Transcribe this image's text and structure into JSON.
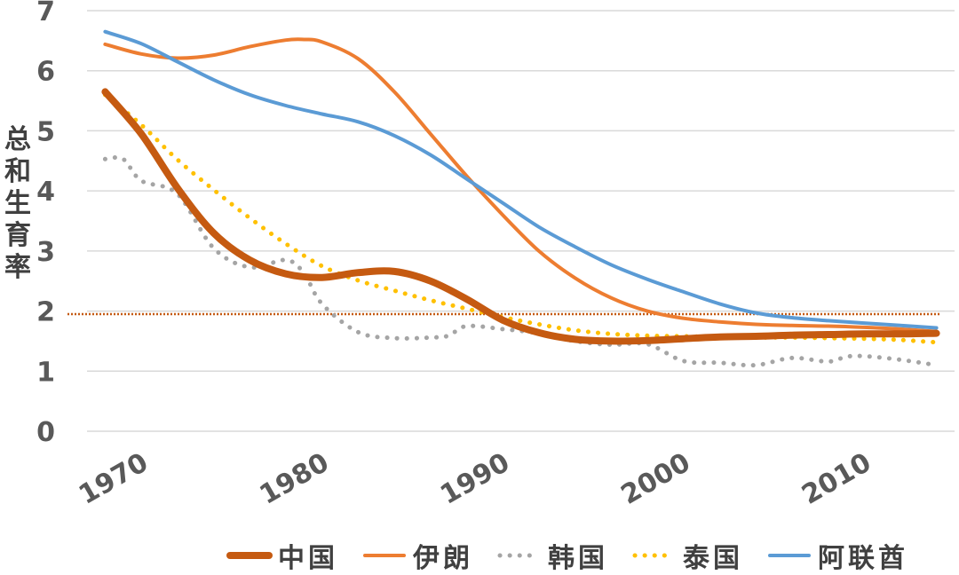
{
  "chart_data": {
    "type": "line",
    "title": "",
    "xlabel": "",
    "ylabel": "总和生育率",
    "ylim": [
      0,
      7
    ],
    "xlim": [
      1968,
      2016
    ],
    "x_ticks": [
      1970,
      1980,
      1990,
      2000,
      2010
    ],
    "y_ticks": [
      0,
      1,
      2,
      3,
      4,
      5,
      6,
      7
    ],
    "grid": "horizontal",
    "legend_position": "bottom",
    "reference_line": {
      "value": 1.95,
      "color": "#c55a11",
      "style": "dotted"
    },
    "series": [
      {
        "name": "中国",
        "color": "#c55a11",
        "style": "solid-thick",
        "x": [
          1969,
          1971,
          1973,
          1975,
          1977,
          1979,
          1981,
          1983,
          1985,
          1987,
          1989,
          1991,
          1993,
          1995,
          1997,
          1999,
          2001,
          2003,
          2005,
          2007,
          2009,
          2011,
          2013,
          2015
        ],
        "y": [
          5.65,
          4.95,
          4.05,
          3.3,
          2.85,
          2.62,
          2.56,
          2.64,
          2.66,
          2.5,
          2.2,
          1.85,
          1.64,
          1.53,
          1.5,
          1.51,
          1.54,
          1.57,
          1.58,
          1.6,
          1.61,
          1.62,
          1.62,
          1.63
        ]
      },
      {
        "name": "伊朗",
        "color": "#ed7d31",
        "style": "solid",
        "x": [
          1969,
          1971,
          1973,
          1975,
          1977,
          1979,
          1980,
          1981,
          1983,
          1985,
          1987,
          1989,
          1991,
          1993,
          1995,
          1997,
          1999,
          2001,
          2003,
          2005,
          2007,
          2009,
          2011,
          2013,
          2015
        ],
        "y": [
          6.44,
          6.28,
          6.21,
          6.26,
          6.4,
          6.51,
          6.52,
          6.48,
          6.2,
          5.65,
          4.95,
          4.25,
          3.6,
          3.0,
          2.55,
          2.22,
          2.0,
          1.88,
          1.82,
          1.78,
          1.76,
          1.75,
          1.73,
          1.7,
          1.66
        ]
      },
      {
        "name": "韩国",
        "color": "#a5a5a5",
        "style": "dotted",
        "x": [
          1969,
          1970,
          1971,
          1973,
          1975,
          1977,
          1979,
          1980,
          1981,
          1983,
          1985,
          1987,
          1988,
          1989,
          1991,
          1993,
          1995,
          1997,
          1999,
          2001,
          2003,
          2005,
          2007,
          2009,
          2010,
          2011,
          2013,
          2015
        ],
        "y": [
          4.53,
          4.53,
          4.17,
          3.95,
          3.05,
          2.73,
          2.85,
          2.63,
          2.12,
          1.65,
          1.55,
          1.56,
          1.59,
          1.75,
          1.7,
          1.63,
          1.5,
          1.44,
          1.45,
          1.17,
          1.14,
          1.1,
          1.22,
          1.16,
          1.24,
          1.25,
          1.19,
          1.1
        ]
      },
      {
        "name": "泰国",
        "color": "#ffc000",
        "style": "dotted",
        "x": [
          1969,
          1971,
          1973,
          1975,
          1977,
          1979,
          1981,
          1983,
          1985,
          1987,
          1989,
          1991,
          1993,
          1995,
          1997,
          1999,
          2001,
          2003,
          2005,
          2007,
          2009,
          2011,
          2013,
          2015
        ],
        "y": [
          5.6,
          5.1,
          4.52,
          4.02,
          3.55,
          3.12,
          2.75,
          2.51,
          2.34,
          2.18,
          2.04,
          1.9,
          1.78,
          1.68,
          1.62,
          1.59,
          1.58,
          1.57,
          1.56,
          1.56,
          1.55,
          1.54,
          1.52,
          1.48
        ]
      },
      {
        "name": "阿联酋",
        "color": "#5b9bd5",
        "style": "solid",
        "x": [
          1969,
          1971,
          1973,
          1975,
          1977,
          1979,
          1981,
          1983,
          1985,
          1987,
          1989,
          1991,
          1993,
          1995,
          1997,
          1999,
          2001,
          2003,
          2005,
          2007,
          2009,
          2011,
          2013,
          2015
        ],
        "y": [
          6.65,
          6.45,
          6.15,
          5.85,
          5.6,
          5.42,
          5.28,
          5.15,
          4.92,
          4.6,
          4.2,
          3.8,
          3.4,
          3.07,
          2.77,
          2.53,
          2.32,
          2.12,
          1.97,
          1.89,
          1.84,
          1.8,
          1.76,
          1.72
        ]
      }
    ]
  }
}
